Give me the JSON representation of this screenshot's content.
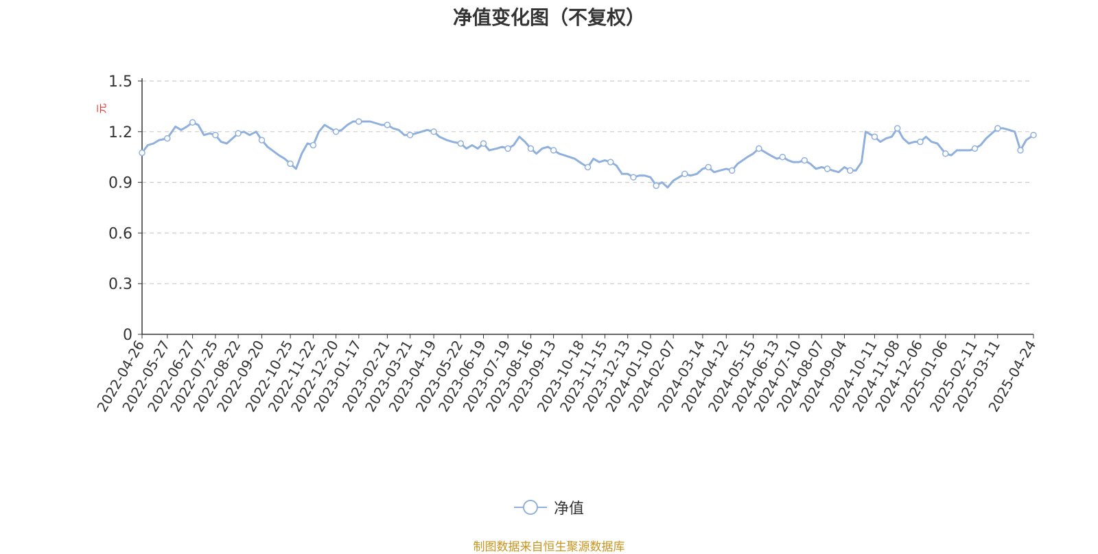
{
  "chart_data": {
    "type": "line",
    "title": "净值变化图（不复权）",
    "ylabel": "元",
    "ylim": [
      0,
      1.5
    ],
    "yticks": [
      "0",
      "0.3",
      "0.6",
      "0.9",
      "1.2",
      "1.5"
    ],
    "grid": true,
    "legend_position": "bottom-center",
    "x_tick_labels": [
      "2022-04-26",
      "2022-05-27",
      "2022-06-27",
      "2022-07-25",
      "2022-08-22",
      "2022-09-20",
      "2022-10-25",
      "2022-11-22",
      "2022-12-20",
      "2023-01-17",
      "2023-02-21",
      "2023-03-21",
      "2023-04-19",
      "2023-05-22",
      "2023-06-19",
      "2023-07-19",
      "2023-08-16",
      "2023-09-13",
      "2023-10-18",
      "2023-11-15",
      "2023-12-13",
      "2024-01-10",
      "2024-02-07",
      "2024-03-14",
      "2024-04-12",
      "2024-05-15",
      "2024-06-13",
      "2024-07-10",
      "2024-08-07",
      "2024-09-04",
      "2024-10-11",
      "2024-11-08",
      "2024-12-06",
      "2025-01-06",
      "2025-02-11",
      "2025-03-11",
      "2025-04-24"
    ],
    "series": [
      {
        "name": "净值",
        "color": "#8fb0dc",
        "x": [
          "2022-04-26",
          "2022-05-03",
          "2022-05-10",
          "2022-05-17",
          "2022-05-27",
          "2022-06-06",
          "2022-06-13",
          "2022-06-20",
          "2022-06-27",
          "2022-07-04",
          "2022-07-11",
          "2022-07-18",
          "2022-07-25",
          "2022-08-01",
          "2022-08-08",
          "2022-08-15",
          "2022-08-22",
          "2022-08-29",
          "2022-09-05",
          "2022-09-13",
          "2022-09-20",
          "2022-09-27",
          "2022-10-11",
          "2022-10-18",
          "2022-10-25",
          "2022-11-01",
          "2022-11-08",
          "2022-11-15",
          "2022-11-22",
          "2022-11-29",
          "2022-12-06",
          "2022-12-13",
          "2022-12-20",
          "2022-12-27",
          "2023-01-03",
          "2023-01-10",
          "2023-01-17",
          "2023-01-31",
          "2023-02-07",
          "2023-02-14",
          "2023-02-21",
          "2023-02-28",
          "2023-03-07",
          "2023-03-14",
          "2023-03-21",
          "2023-03-28",
          "2023-04-04",
          "2023-04-11",
          "2023-04-19",
          "2023-04-26",
          "2023-05-05",
          "2023-05-12",
          "2023-05-22",
          "2023-05-29",
          "2023-06-05",
          "2023-06-12",
          "2023-06-19",
          "2023-06-26",
          "2023-07-05",
          "2023-07-12",
          "2023-07-19",
          "2023-07-26",
          "2023-08-02",
          "2023-08-09",
          "2023-08-16",
          "2023-08-23",
          "2023-08-30",
          "2023-09-06",
          "2023-09-13",
          "2023-09-20",
          "2023-10-09",
          "2023-10-18",
          "2023-10-25",
          "2023-11-01",
          "2023-11-08",
          "2023-11-15",
          "2023-11-22",
          "2023-11-29",
          "2023-12-06",
          "2023-12-13",
          "2023-12-20",
          "2023-12-27",
          "2024-01-03",
          "2024-01-10",
          "2024-01-17",
          "2024-01-24",
          "2024-01-31",
          "2024-02-07",
          "2024-02-21",
          "2024-02-28",
          "2024-03-07",
          "2024-03-14",
          "2024-03-21",
          "2024-03-28",
          "2024-04-04",
          "2024-04-12",
          "2024-04-19",
          "2024-04-26",
          "2024-05-08",
          "2024-05-15",
          "2024-05-22",
          "2024-05-29",
          "2024-06-05",
          "2024-06-13",
          "2024-06-20",
          "2024-06-27",
          "2024-07-03",
          "2024-07-10",
          "2024-07-17",
          "2024-07-24",
          "2024-07-31",
          "2024-08-07",
          "2024-08-14",
          "2024-08-21",
          "2024-08-28",
          "2024-09-04",
          "2024-09-11",
          "2024-09-18",
          "2024-09-25",
          "2024-09-30",
          "2024-10-11",
          "2024-10-18",
          "2024-10-25",
          "2024-11-01",
          "2024-11-08",
          "2024-11-15",
          "2024-11-22",
          "2024-11-29",
          "2024-12-06",
          "2024-12-13",
          "2024-12-20",
          "2024-12-27",
          "2025-01-06",
          "2025-01-13",
          "2025-01-20",
          "2025-02-05",
          "2025-02-11",
          "2025-02-18",
          "2025-02-25",
          "2025-03-04",
          "2025-03-11",
          "2025-03-18",
          "2025-03-25",
          "2025-04-01",
          "2025-04-08",
          "2025-04-15",
          "2025-04-24"
        ],
        "values": [
          1.075,
          1.12,
          1.13,
          1.15,
          1.16,
          1.23,
          1.21,
          1.23,
          1.255,
          1.24,
          1.18,
          1.19,
          1.18,
          1.14,
          1.13,
          1.16,
          1.19,
          1.2,
          1.18,
          1.2,
          1.15,
          1.11,
          1.06,
          1.04,
          1.01,
          0.98,
          1.07,
          1.13,
          1.12,
          1.2,
          1.24,
          1.22,
          1.2,
          1.21,
          1.24,
          1.26,
          1.26,
          1.26,
          1.25,
          1.24,
          1.24,
          1.22,
          1.21,
          1.18,
          1.18,
          1.19,
          1.2,
          1.21,
          1.2,
          1.17,
          1.15,
          1.14,
          1.13,
          1.1,
          1.12,
          1.1,
          1.13,
          1.09,
          1.1,
          1.11,
          1.1,
          1.12,
          1.17,
          1.14,
          1.1,
          1.07,
          1.1,
          1.11,
          1.09,
          1.07,
          1.04,
          1.01,
          0.99,
          1.04,
          1.02,
          1.03,
          1.02,
          1.0,
          0.95,
          0.95,
          0.93,
          0.94,
          0.94,
          0.93,
          0.88,
          0.9,
          0.87,
          0.91,
          0.95,
          0.94,
          0.95,
          0.98,
          0.99,
          0.96,
          0.97,
          0.98,
          0.97,
          1.01,
          1.05,
          1.07,
          1.1,
          1.08,
          1.06,
          1.04,
          1.05,
          1.03,
          1.02,
          1.02,
          1.03,
          1.01,
          0.98,
          0.99,
          0.98,
          0.97,
          0.96,
          0.99,
          0.97,
          0.97,
          1.02,
          1.2,
          1.17,
          1.14,
          1.16,
          1.17,
          1.22,
          1.16,
          1.13,
          1.14,
          1.14,
          1.17,
          1.14,
          1.13,
          1.07,
          1.06,
          1.09,
          1.09,
          1.1,
          1.12,
          1.16,
          1.19,
          1.22,
          1.22,
          1.21,
          1.2,
          1.09,
          1.15,
          1.18
        ]
      }
    ]
  },
  "legend": {
    "label": "净值",
    "color": "#8fb0dc"
  },
  "source_note": "制图数据来自恒生聚源数据库",
  "colors": {
    "line": "#8fb0dc",
    "axis": "#333333",
    "grid": "#cccccc",
    "ylabel": "#e03030",
    "source": "#c8941e"
  }
}
